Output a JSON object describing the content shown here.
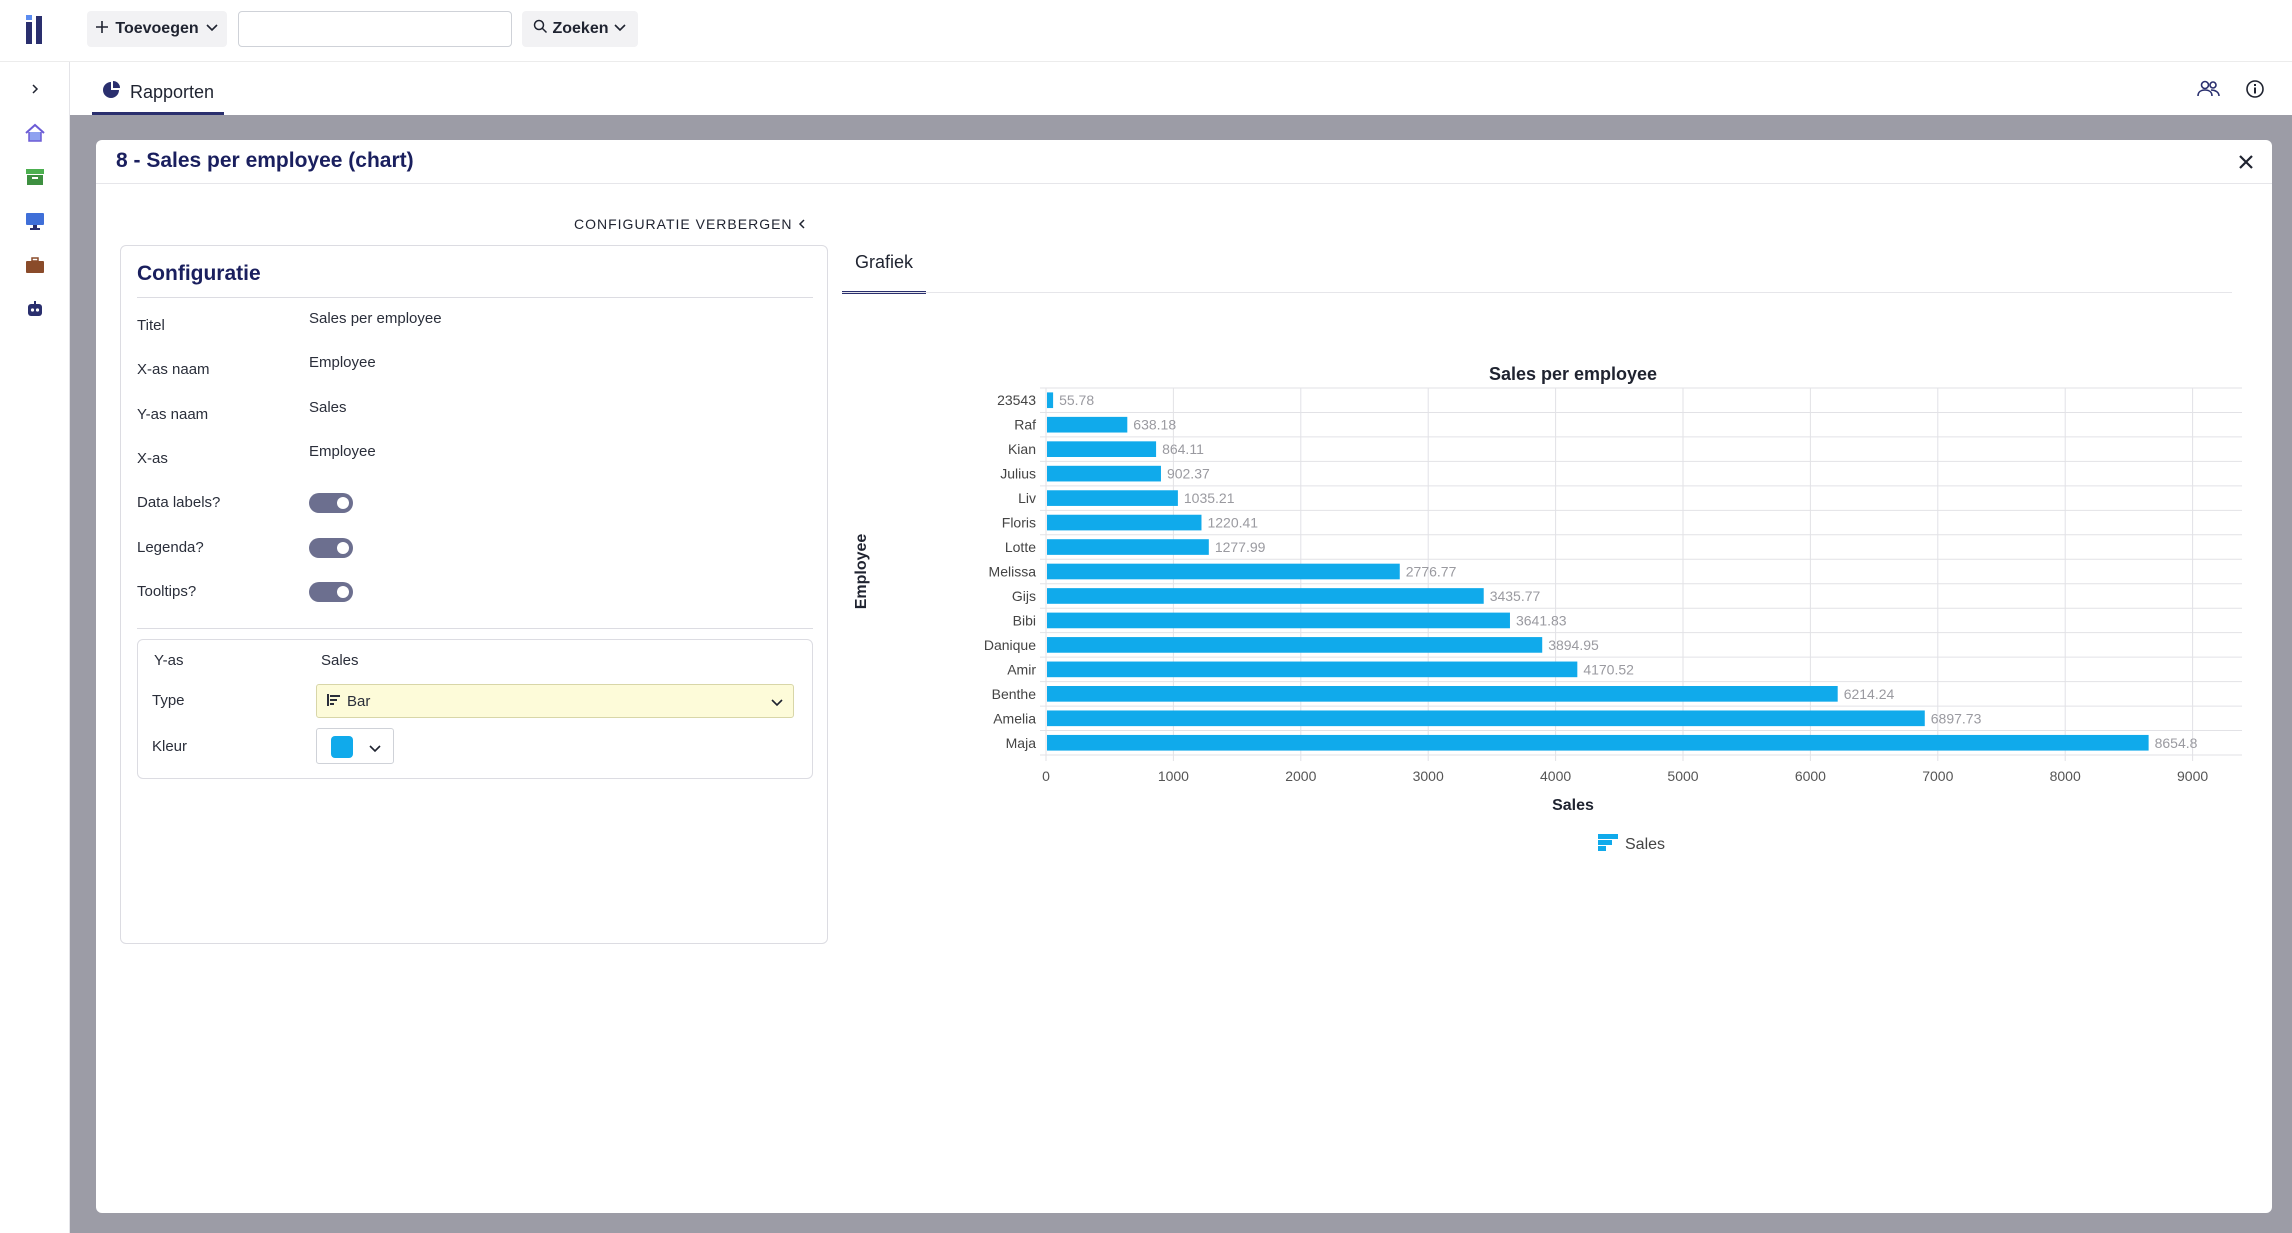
{
  "topbar": {
    "add_label": "Toevoegen",
    "search_value": "",
    "search_label": "Zoeken"
  },
  "sidebar": {
    "items": [
      {
        "icon": "chevron-right-icon"
      },
      {
        "icon": "home-icon",
        "color": "#6b5bd6"
      },
      {
        "icon": "archive-icon",
        "color": "#4caf50"
      },
      {
        "icon": "monitor-icon",
        "color": "#3f6fd8"
      },
      {
        "icon": "briefcase-icon",
        "color": "#8a4b2a"
      },
      {
        "icon": "robot-icon",
        "color": "#2a2f6e"
      }
    ]
  },
  "tabs": {
    "rapporten_label": "Rapporten"
  },
  "modal": {
    "title": "8 - Sales per employee (chart)",
    "config_toggle_label": "CONFIGURATIE VERBERGEN"
  },
  "config": {
    "title": "Configuratie",
    "fields": [
      {
        "label": "Titel",
        "value": "Sales per employee"
      },
      {
        "label": "X-as naam",
        "value": "Employee"
      },
      {
        "label": "Y-as naam",
        "value": "Sales"
      },
      {
        "label": "X-as",
        "value": "Employee"
      }
    ],
    "toggles": [
      {
        "label": "Data labels?",
        "on": true
      },
      {
        "label": "Legenda?",
        "on": true
      },
      {
        "label": "Tooltips?",
        "on": true
      }
    ],
    "yaxis": {
      "label": "Y-as",
      "value": "Sales",
      "type_label": "Type",
      "type_value": "Bar",
      "color_label": "Kleur",
      "color": "#10aaeb"
    }
  },
  "chart_tab_label": "Grafiek",
  "chart_data": {
    "type": "bar",
    "orientation": "horizontal",
    "title": "Sales per employee",
    "xlabel": "Sales",
    "ylabel": "Employee",
    "categories": [
      "23543",
      "Raf",
      "Kian",
      "Julius",
      "Liv",
      "Floris",
      "Lotte",
      "Melissa",
      "Gijs",
      "Bibi",
      "Danique",
      "Amir",
      "Benthe",
      "Amelia",
      "Maja"
    ],
    "series": [
      {
        "name": "Sales",
        "values": [
          55.78,
          638.18,
          864.11,
          902.37,
          1035.21,
          1220.41,
          1277.99,
          2776.77,
          3435.77,
          3641.83,
          3894.95,
          4170.52,
          6214.24,
          6897.73,
          8654.8
        ]
      }
    ],
    "xlim": [
      0,
      10000
    ],
    "xticks": [
      "0",
      "1000",
      "2000",
      "3000",
      "4000",
      "5000",
      "6000",
      "7000",
      "8000",
      "9000",
      "10000"
    ],
    "grid": true,
    "legend": "bottom-center",
    "bar_color": "#10aaeb"
  }
}
